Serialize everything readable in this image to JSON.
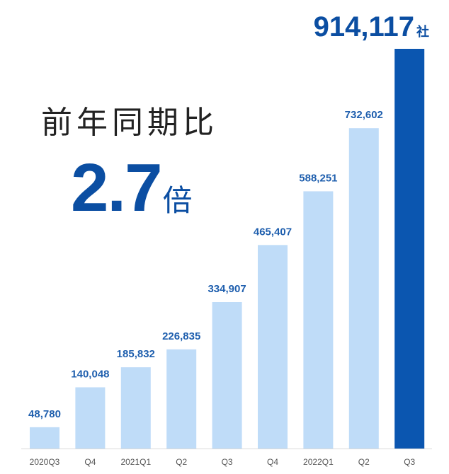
{
  "chart_data": {
    "type": "bar",
    "categories": [
      "2020Q3",
      "Q4",
      "2021Q1",
      "Q2",
      "Q3",
      "Q4",
      "2022Q1",
      "Q2",
      "Q3"
    ],
    "values": [
      48780,
      140048,
      185832,
      226835,
      334907,
      465407,
      588251,
      732602,
      914117
    ],
    "data_labels": [
      "48,780",
      "140,048",
      "185,832",
      "226,835",
      "334,907",
      "465,407",
      "588,251",
      "732,602",
      "914,117"
    ],
    "highlight_unit": "社",
    "ylim": [
      0,
      914117
    ],
    "grid": false,
    "colors": {
      "bar": "#bfdcf8",
      "highlight": "#0b56b0",
      "label": "#1f5fae",
      "highlight_label": "#0b4ea2",
      "tick": "#555555",
      "axis": "#d9d9d9"
    }
  },
  "callout": {
    "label": "前年同期比",
    "value": "2.7",
    "unit": "倍"
  }
}
